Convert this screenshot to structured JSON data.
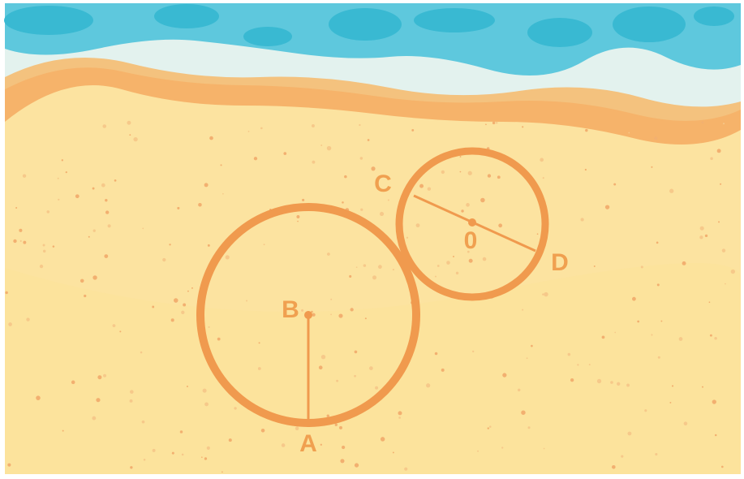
{
  "labels": {
    "a": "A",
    "b": "B",
    "c": "C",
    "d": "D",
    "o": "0"
  }
}
